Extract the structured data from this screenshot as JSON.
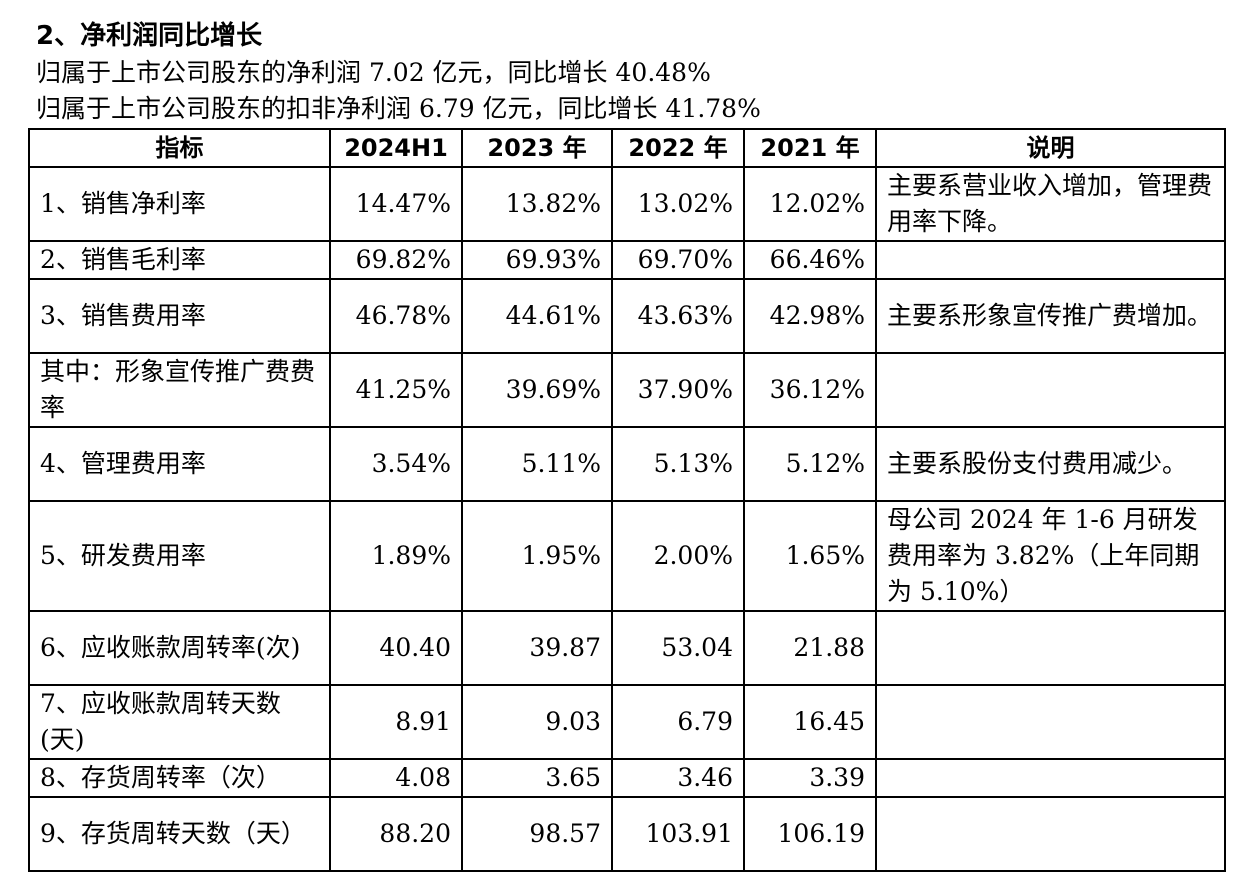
{
  "heading": "2、净利润同比增长",
  "summary": [
    "归属于上市公司股东的净利润 7.02 亿元，同比增长 40.48%",
    "归属于上市公司股东的扣非净利润 6.79 亿元，同比增长 41.78%"
  ],
  "table": {
    "headers": [
      "指标",
      "2024H1",
      "2023 年",
      "2022 年",
      "2021 年",
      "说明"
    ],
    "rows": [
      {
        "indicator": "1、销售净利率",
        "h1_2024": "14.47%",
        "y2023": "13.82%",
        "y2022": "13.02%",
        "y2021": "12.02%",
        "note": "主要系营业收入增加，管理费用率下降。"
      },
      {
        "indicator": "2、销售毛利率",
        "h1_2024": "69.82%",
        "y2023": "69.93%",
        "y2022": "69.70%",
        "y2021": "66.46%",
        "note": ""
      },
      {
        "indicator": "3、销售费用率",
        "h1_2024": "46.78%",
        "y2023": "44.61%",
        "y2022": "43.63%",
        "y2021": "42.98%",
        "note": "主要系形象宣传推广费增加。"
      },
      {
        "indicator": "其中：形象宣传推广费费率",
        "h1_2024": "41.25%",
        "y2023": "39.69%",
        "y2022": "37.90%",
        "y2021": "36.12%",
        "note": ""
      },
      {
        "indicator": "4、管理费用率",
        "h1_2024": "3.54%",
        "y2023": "5.11%",
        "y2022": "5.13%",
        "y2021": "5.12%",
        "note": "主要系股份支付费用减少。"
      },
      {
        "indicator": "5、研发费用率",
        "h1_2024": "1.89%",
        "y2023": "1.95%",
        "y2022": "2.00%",
        "y2021": "1.65%",
        "note": "母公司 2024 年 1-6 月研发费用率为 3.82%（上年同期为 5.10%）"
      },
      {
        "indicator": "6、应收账款周转率(次)",
        "h1_2024": "40.40",
        "y2023": "39.87",
        "y2022": "53.04",
        "y2021": "21.88",
        "note": ""
      },
      {
        "indicator": "7、应收账款周转天数(天)",
        "h1_2024": "8.91",
        "y2023": "9.03",
        "y2022": "6.79",
        "y2021": "16.45",
        "note": ""
      },
      {
        "indicator": "8、存货周转率（次）",
        "h1_2024": "4.08",
        "y2023": "3.65",
        "y2022": "3.46",
        "y2021": "3.39",
        "note": ""
      },
      {
        "indicator": "9、存货周转天数（天）",
        "h1_2024": "88.20",
        "y2023": "98.57",
        "y2022": "103.91",
        "y2021": "106.19",
        "note": ""
      }
    ]
  }
}
